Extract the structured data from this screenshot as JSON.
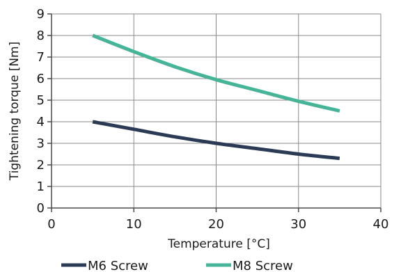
{
  "chart_data": {
    "type": "line",
    "title": "",
    "xlabel": "Temperature [°C]",
    "ylabel": "Tightening torque [Nm]",
    "xlim": [
      0,
      40
    ],
    "ylim": [
      0,
      9
    ],
    "xticks": [
      "0",
      "10",
      "20",
      "30",
      "40"
    ],
    "yticks": [
      "0",
      "1",
      "2",
      "3",
      "4",
      "5",
      "6",
      "7",
      "8",
      "9"
    ],
    "grid": true,
    "legend_position": "bottom",
    "series": [
      {
        "name": "M6 Screw",
        "color": "#2b3a55",
        "x": [
          5,
          10,
          15,
          20,
          25,
          30,
          35
        ],
        "y": [
          4.0,
          3.65,
          3.3,
          3.0,
          2.75,
          2.5,
          2.3
        ]
      },
      {
        "name": "M8 Screw",
        "color": "#45b497",
        "x": [
          5,
          10,
          15,
          20,
          25,
          30,
          35
        ],
        "y": [
          8.0,
          7.25,
          6.55,
          5.95,
          5.45,
          4.95,
          4.5
        ]
      }
    ]
  }
}
